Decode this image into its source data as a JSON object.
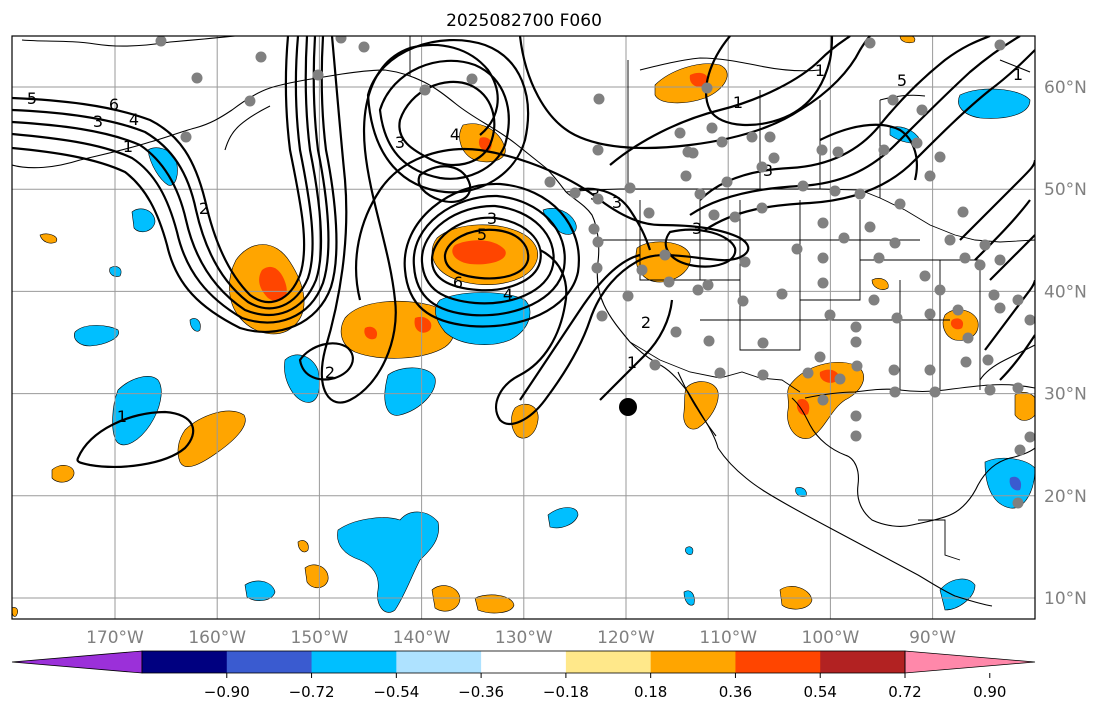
{
  "title": "2025082700 F060",
  "lon_labels": [
    {
      "text": "170°W",
      "lon": -170
    },
    {
      "text": "160°W",
      "lon": -160
    },
    {
      "text": "150°W",
      "lon": -150
    },
    {
      "text": "140°W",
      "lon": -140
    },
    {
      "text": "130°W",
      "lon": -130
    },
    {
      "text": "120°W",
      "lon": -120
    },
    {
      "text": "110°W",
      "lon": -110
    },
    {
      "text": "100°W",
      "lon": -100
    },
    {
      "text": "90°W",
      "lon": -90
    }
  ],
  "lat_labels": [
    {
      "text": "60°N",
      "lat": 60
    },
    {
      "text": "50°N",
      "lat": 50
    },
    {
      "text": "40°N",
      "lat": 40
    },
    {
      "text": "30°N",
      "lat": 30
    },
    {
      "text": "20°N",
      "lat": 20
    },
    {
      "text": "10°N",
      "lat": 10
    }
  ],
  "colorbar": {
    "colors": [
      "#9b30d9",
      "#000080",
      "#3a5bd0",
      "#00bfff",
      "#aee2ff",
      "#ffffff",
      "#ffe88a",
      "#ffa500",
      "#ff4500",
      "#b22222",
      "#ff88aa"
    ],
    "tick_labels": [
      "−0.90",
      "−0.72",
      "−0.54",
      "−0.36",
      "−0.18",
      "0.18",
      "0.36",
      "0.54",
      "0.72",
      "0.90"
    ]
  },
  "colors": {
    "neg_light": "#00bfff",
    "pos_orange": "#ffa500",
    "pos_red": "#ff4500",
    "station": "#808080",
    "grid": "#9a9a9a"
  },
  "contour_labels": [
    "5",
    "6",
    "3",
    "4",
    "1",
    "2",
    "3",
    "4",
    "3",
    "5",
    "6",
    "4",
    "2",
    "1",
    "1",
    "2",
    "3",
    "3",
    "1",
    "5",
    "1",
    "3",
    "1",
    "3"
  ],
  "stations_count_note": ""
}
